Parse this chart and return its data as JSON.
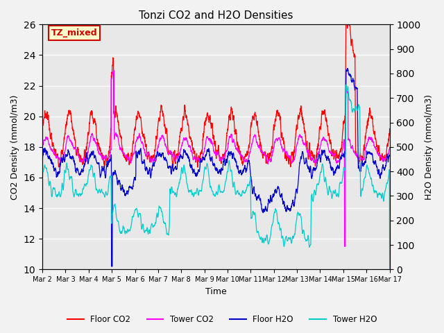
{
  "title": "Tonzi CO2 and H2O Densities",
  "xlabel": "Time",
  "ylabel_left": "CO2 Density (mmol/m3)",
  "ylabel_right": "H2O Density (mmol/m3)",
  "ylim_left": [
    10,
    26
  ],
  "ylim_right": [
    0,
    1000
  ],
  "yticks_left": [
    10,
    12,
    14,
    16,
    18,
    20,
    22,
    24,
    26
  ],
  "yticks_right": [
    0,
    100,
    200,
    300,
    400,
    500,
    600,
    700,
    800,
    900,
    1000
  ],
  "colors": {
    "floor_co2": "#ff0000",
    "tower_co2": "#ff00ff",
    "floor_h2o": "#0000cc",
    "tower_h2o": "#00cccc"
  },
  "legend_labels": [
    "Floor CO2",
    "Tower CO2",
    "Floor H2O",
    "Tower H2O"
  ],
  "annotation_text": "TZ_mixed",
  "annotation_color": "#cc0000",
  "annotation_bg": "#ffffcc",
  "bg_color": "#e8e8e8",
  "grid_color": "#ffffff",
  "fig_facecolor": "#f2f2f2",
  "xticklabels": [
    "Mar 2",
    "Mar 3",
    "Mar 4",
    "Mar 5",
    "Mar 6",
    "Mar 7",
    "Mar 8",
    "Mar 9",
    "Mar 10",
    "Mar 11",
    "Mar 12",
    "Mar 13",
    "Mar 14",
    "Mar 15",
    "Mar 16",
    "Mar 17"
  ],
  "n_points": 2880,
  "days": 15
}
